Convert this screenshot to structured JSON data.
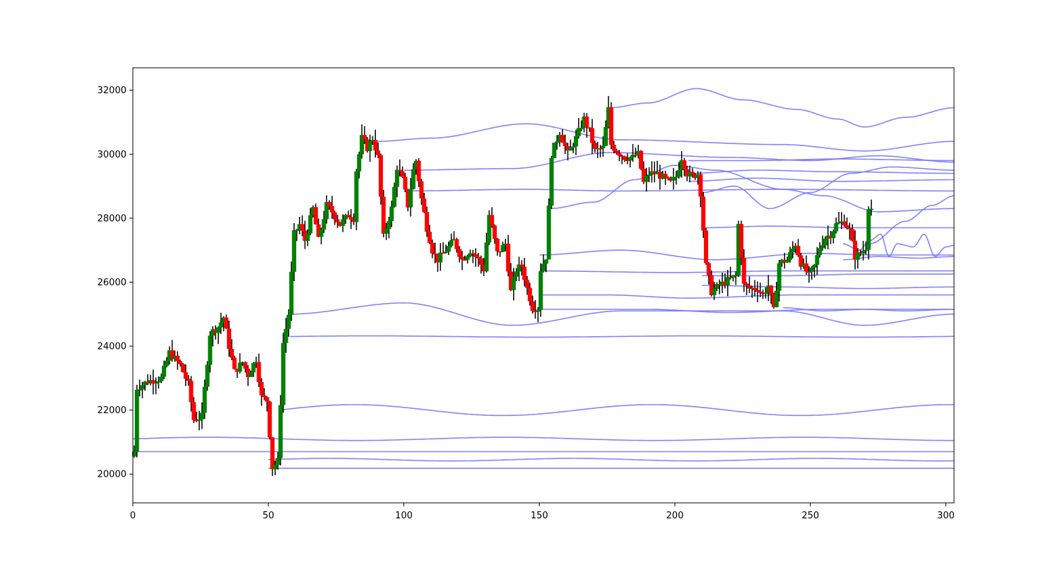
{
  "chart_data": {
    "type": "candlestick",
    "title": "",
    "xlabel": "",
    "ylabel": "",
    "xlim": [
      0,
      303
    ],
    "ylim": [
      19100,
      32700
    ],
    "grid": false,
    "x_ticks": [
      0,
      50,
      100,
      150,
      200,
      250,
      300
    ],
    "y_ticks": [
      20000,
      22000,
      24000,
      26000,
      28000,
      30000,
      32000
    ],
    "colors": {
      "up": "#008000",
      "down": "#ff0000",
      "wick": "#000000",
      "level_line": "#7777ff",
      "axes": "#000000",
      "background": "#ffffff"
    },
    "candle_anchors": [
      [
        0,
        20700
      ],
      [
        1,
        22700
      ],
      [
        5,
        22900
      ],
      [
        10,
        23000
      ],
      [
        13,
        23800
      ],
      [
        17,
        23400
      ],
      [
        20,
        22800
      ],
      [
        22,
        21700
      ],
      [
        25,
        21800
      ],
      [
        28,
        24400
      ],
      [
        31,
        24600
      ],
      [
        33,
        24900
      ],
      [
        35,
        24000
      ],
      [
        37,
        23200
      ],
      [
        40,
        23500
      ],
      [
        42,
        23100
      ],
      [
        45,
        23600
      ],
      [
        47,
        22400
      ],
      [
        49,
        22300
      ],
      [
        51,
        20200
      ],
      [
        53,
        20400
      ],
      [
        55,
        24100
      ],
      [
        57,
        25000
      ],
      [
        59,
        27500
      ],
      [
        61,
        27800
      ],
      [
        63,
        27300
      ],
      [
        66,
        28300
      ],
      [
        68,
        27300
      ],
      [
        71,
        28400
      ],
      [
        73,
        28200
      ],
      [
        76,
        27800
      ],
      [
        79,
        28100
      ],
      [
        81,
        28000
      ],
      [
        82,
        29500
      ],
      [
        84,
        30500
      ],
      [
        86,
        30200
      ],
      [
        88,
        30500
      ],
      [
        90,
        29900
      ],
      [
        92,
        27400
      ],
      [
        95,
        28300
      ],
      [
        97,
        29600
      ],
      [
        99,
        29200
      ],
      [
        101,
        28400
      ],
      [
        103,
        29500
      ],
      [
        104,
        29800
      ],
      [
        106,
        28600
      ],
      [
        108,
        27700
      ],
      [
        110,
        27000
      ],
      [
        112,
        26700
      ],
      [
        115,
        27000
      ],
      [
        118,
        27300
      ],
      [
        121,
        26700
      ],
      [
        124,
        27000
      ],
      [
        127,
        26700
      ],
      [
        129,
        26400
      ],
      [
        131,
        28100
      ],
      [
        134,
        26900
      ],
      [
        137,
        27200
      ],
      [
        139,
        25700
      ],
      [
        141,
        26400
      ],
      [
        143,
        26500
      ],
      [
        145,
        25800
      ],
      [
        147,
        25200
      ],
      [
        149,
        25200
      ],
      [
        150,
        26400
      ],
      [
        152,
        26800
      ],
      [
        153,
        28300
      ],
      [
        154,
        30000
      ],
      [
        157,
        30700
      ],
      [
        160,
        30000
      ],
      [
        163,
        30500
      ],
      [
        166,
        31100
      ],
      [
        168,
        30700
      ],
      [
        170,
        30100
      ],
      [
        173,
        30200
      ],
      [
        175,
        31400
      ],
      [
        176,
        30300
      ],
      [
        178,
        30100
      ],
      [
        181,
        29900
      ],
      [
        184,
        29900
      ],
      [
        186,
        30000
      ],
      [
        188,
        29100
      ],
      [
        190,
        29400
      ],
      [
        193,
        29400
      ],
      [
        196,
        29200
      ],
      [
        198,
        29100
      ],
      [
        200,
        29300
      ],
      [
        202,
        29900
      ],
      [
        204,
        29400
      ],
      [
        206,
        29300
      ],
      [
        208,
        29400
      ],
      [
        209,
        28800
      ],
      [
        211,
        26500
      ],
      [
        213,
        25700
      ],
      [
        216,
        25900
      ],
      [
        218,
        26000
      ],
      [
        220,
        26100
      ],
      [
        222,
        26200
      ],
      [
        223,
        27800
      ],
      [
        225,
        25900
      ],
      [
        227,
        25800
      ],
      [
        230,
        25800
      ],
      [
        232,
        25600
      ],
      [
        234,
        25900
      ],
      [
        236,
        25100
      ],
      [
        238,
        26600
      ],
      [
        241,
        26700
      ],
      [
        244,
        27200
      ],
      [
        246,
        26600
      ],
      [
        249,
        26200
      ],
      [
        251,
        26500
      ],
      [
        253,
        27100
      ],
      [
        255,
        27400
      ],
      [
        257,
        27500
      ],
      [
        259,
        27800
      ],
      [
        262,
        27900
      ],
      [
        264,
        27600
      ],
      [
        266,
        26800
      ],
      [
        268,
        26900
      ],
      [
        270,
        27100
      ],
      [
        271,
        28400
      ],
      [
        272,
        28300
      ]
    ],
    "level_lines": [
      {
        "start": 0,
        "y": 20700,
        "amp": 0,
        "period": 100
      },
      {
        "start": 0,
        "y": 21100,
        "amp": 50,
        "period": 110
      },
      {
        "start": 50,
        "y": 20450,
        "amp": 40,
        "period": 90
      },
      {
        "start": 50,
        "y": 20180,
        "amp": 0,
        "period": 100
      },
      {
        "start": 54,
        "y": 22000,
        "amp": 170,
        "period": 110
      },
      {
        "start": 58,
        "y": 24300,
        "amp": 20,
        "period": 120
      },
      {
        "start": 58,
        "y": 25000,
        "amp": 350,
        "points": [
          [
            58,
            25000
          ],
          [
            100,
            25350
          ],
          [
            140,
            24650
          ],
          [
            180,
            25100
          ],
          [
            240,
            25100
          ],
          [
            270,
            24650
          ],
          [
            303,
            25000
          ]
        ]
      },
      {
        "start": 90,
        "y": 30400,
        "points": [
          [
            90,
            30400
          ],
          [
            110,
            30500
          ],
          [
            145,
            30950
          ],
          [
            180,
            30450
          ],
          [
            240,
            30300
          ],
          [
            270,
            30100
          ],
          [
            303,
            30400
          ]
        ]
      },
      {
        "start": 100,
        "y": 29500,
        "points": [
          [
            100,
            29500
          ],
          [
            140,
            29550
          ],
          [
            176,
            30050
          ],
          [
            220,
            29900
          ],
          [
            250,
            29800
          ],
          [
            275,
            29950
          ],
          [
            303,
            29750
          ]
        ]
      },
      {
        "start": 100,
        "y": 28850,
        "points": [
          [
            100,
            28850
          ],
          [
            145,
            28900
          ],
          [
            180,
            28850
          ],
          [
            240,
            28900
          ],
          [
            303,
            28850
          ]
        ]
      },
      {
        "start": 150,
        "y": 26850,
        "points": [
          [
            150,
            26850
          ],
          [
            180,
            27000
          ],
          [
            215,
            26700
          ],
          [
            250,
            26900
          ],
          [
            275,
            26850
          ],
          [
            303,
            26850
          ]
        ]
      },
      {
        "start": 150,
        "y": 26350,
        "points": [
          [
            150,
            26350
          ],
          [
            200,
            26300
          ],
          [
            240,
            26350
          ],
          [
            303,
            26350
          ]
        ]
      },
      {
        "start": 150,
        "y": 25600,
        "points": [
          [
            150,
            25600
          ],
          [
            175,
            25600
          ],
          [
            205,
            25500
          ],
          [
            245,
            25600
          ],
          [
            303,
            25600
          ]
        ]
      },
      {
        "start": 150,
        "y": 25150,
        "points": [
          [
            150,
            25150
          ],
          [
            190,
            25150
          ],
          [
            220,
            25050
          ],
          [
            255,
            25150
          ],
          [
            303,
            25150
          ]
        ]
      },
      {
        "start": 154,
        "y": 28300,
        "points": [
          [
            154,
            28300
          ],
          [
            170,
            28500
          ],
          [
            185,
            29200
          ],
          [
            200,
            29650
          ],
          [
            215,
            29500
          ],
          [
            240,
            28900
          ],
          [
            255,
            28700
          ],
          [
            275,
            28200
          ],
          [
            303,
            28300
          ]
        ]
      },
      {
        "start": 176,
        "y": 31450,
        "points": [
          [
            176,
            31450
          ],
          [
            190,
            31600
          ],
          [
            208,
            32050
          ],
          [
            225,
            31700
          ],
          [
            245,
            31400
          ],
          [
            260,
            31100
          ],
          [
            270,
            30850
          ],
          [
            285,
            31150
          ],
          [
            303,
            31450
          ]
        ]
      },
      {
        "start": 205,
        "y": 29850,
        "points": [
          [
            205,
            29800
          ],
          [
            230,
            29800
          ],
          [
            260,
            29850
          ],
          [
            303,
            29800
          ]
        ]
      },
      {
        "start": 205,
        "y": 29450,
        "points": [
          [
            205,
            29400
          ],
          [
            230,
            29500
          ],
          [
            260,
            29450
          ],
          [
            303,
            29400
          ]
        ]
      },
      {
        "start": 205,
        "y": 29200,
        "points": [
          [
            205,
            29150
          ],
          [
            230,
            29250
          ],
          [
            260,
            29150
          ],
          [
            303,
            29200
          ]
        ]
      },
      {
        "start": 210,
        "y": 28700,
        "points": [
          [
            210,
            28800
          ],
          [
            222,
            29000
          ],
          [
            235,
            28300
          ],
          [
            250,
            28800
          ],
          [
            265,
            29400
          ],
          [
            280,
            29600
          ],
          [
            303,
            29500
          ]
        ]
      },
      {
        "start": 210,
        "y": 27700,
        "points": [
          [
            210,
            27700
          ],
          [
            235,
            27750
          ],
          [
            265,
            27700
          ],
          [
            303,
            27700
          ]
        ]
      },
      {
        "start": 210,
        "y": 26200,
        "points": [
          [
            210,
            26200
          ],
          [
            240,
            26200
          ],
          [
            270,
            26250
          ],
          [
            303,
            26250
          ]
        ]
      },
      {
        "start": 210,
        "y": 25900,
        "points": [
          [
            210,
            25900
          ],
          [
            240,
            25850
          ],
          [
            270,
            25800
          ],
          [
            303,
            25850
          ]
        ]
      },
      {
        "start": 262,
        "y": 27200,
        "points": [
          [
            262,
            27200
          ],
          [
            268,
            27000
          ],
          [
            272,
            27300
          ],
          [
            276,
            27500
          ],
          [
            279,
            26800
          ],
          [
            282,
            27200
          ],
          [
            288,
            27100
          ],
          [
            292,
            27500
          ],
          [
            296,
            26800
          ],
          [
            300,
            27100
          ],
          [
            303,
            27150
          ]
        ]
      },
      {
        "start": 262,
        "y": 26700,
        "points": [
          [
            262,
            26700
          ],
          [
            275,
            26800
          ],
          [
            290,
            26750
          ],
          [
            303,
            26800
          ]
        ]
      },
      {
        "start": 240,
        "y": 25200,
        "points": [
          [
            240,
            25200
          ],
          [
            255,
            25100
          ],
          [
            270,
            25150
          ],
          [
            285,
            25100
          ],
          [
            303,
            25150
          ]
        ]
      },
      {
        "start": 272,
        "y": 27200,
        "points": [
          [
            272,
            27200
          ],
          [
            285,
            27900
          ],
          [
            295,
            28400
          ],
          [
            303,
            28700
          ]
        ]
      }
    ]
  }
}
